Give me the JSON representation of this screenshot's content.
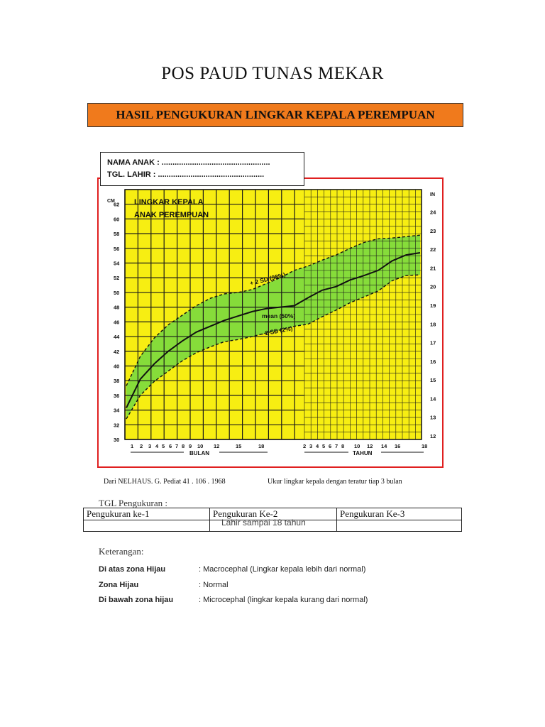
{
  "header": {
    "title": "POS PAUD TUNAS MEKAR",
    "banner": "HASIL PENGUKURAN LINGKAR KEPALA PEREMPUAN"
  },
  "identity": {
    "nama": "NAMA ANAK : ..................................................",
    "tgl": "TGL. LAHIR     : ................................................."
  },
  "chart_data": {
    "type": "line",
    "title_lines": [
      "LINGKAR KEPALA",
      "ANAK PEREMPUAN"
    ],
    "y_unit_left": "CM",
    "y_unit_right": "IN",
    "yticks_cm": [
      30,
      32,
      34,
      36,
      38,
      40,
      42,
      44,
      46,
      48,
      50,
      52,
      54,
      56,
      58,
      60,
      62
    ],
    "yticks_in": [
      12,
      13,
      14,
      15,
      16,
      17,
      18,
      19,
      20,
      21,
      22,
      23,
      24
    ],
    "x_month_ticks": [
      "1",
      "2",
      "3",
      "4",
      "5",
      "6",
      "7",
      "8",
      "9",
      "10",
      "12",
      "15",
      "18"
    ],
    "x_year_ticks": [
      "2",
      "3",
      "4",
      "5",
      "6",
      "7",
      "8",
      "10",
      "12",
      "14",
      "16",
      "18"
    ],
    "x_label_months": "BULAN",
    "x_label_years": "TAHUN",
    "colors": {
      "background": "#f7ee12",
      "band": "#86dc3a",
      "grid": "#1a1a1a"
    },
    "series": [
      {
        "name": "+ 2 SD (98%)",
        "values": [
          37.3,
          41.3,
          43.8,
          45.6,
          46.9,
          48.2,
          49.2,
          49.8,
          50.0,
          50.4,
          51.2,
          52.0,
          53.0,
          53.6,
          54.4,
          55.1,
          56.0,
          56.8,
          57.3,
          57.4,
          57.6,
          57.8
        ]
      },
      {
        "name": "mean (50%)",
        "values": [
          34.3,
          38.2,
          40.3,
          42.0,
          43.4,
          44.6,
          45.4,
          46.2,
          46.8,
          47.4,
          47.8,
          48.0,
          48.2,
          49.3,
          50.3,
          50.8,
          51.7,
          52.3,
          53.0,
          54.3,
          55.1,
          55.4
        ]
      },
      {
        "name": "- 2 SD (2%)",
        "values": [
          32.8,
          36.0,
          37.9,
          39.3,
          40.7,
          41.8,
          42.6,
          43.3,
          43.6,
          44.0,
          44.5,
          44.9,
          45.4,
          45.7,
          46.7,
          47.6,
          48.6,
          49.4,
          50.2,
          51.6,
          52.3,
          52.4
        ]
      }
    ]
  },
  "footer": {
    "source": "Dari NELHAUS. G. Pediat 41 . 106 . 1968",
    "note": "Ukur lingkar kepala dengan teratur tiap 3 bulan",
    "tgl_label": "TGL Pengukuran :",
    "columns": [
      "Pengukuran ke-1",
      "Pengukuran Ke-2",
      "Pengukuran Ke-3"
    ],
    "lahir": "Lahir sampai 18 tahun",
    "keterangan_title": "Keterangan:",
    "rows": [
      {
        "label": "Di atas zona Hijau",
        "value": ": Macrocephal (Lingkar kepala lebih dari normal)"
      },
      {
        "label": "Zona Hijau",
        "value": ":  Normal"
      },
      {
        "label": "Di bawah zona hijau",
        "value": ": Microcephal (lingkar kepala kurang dari normal)"
      }
    ]
  }
}
